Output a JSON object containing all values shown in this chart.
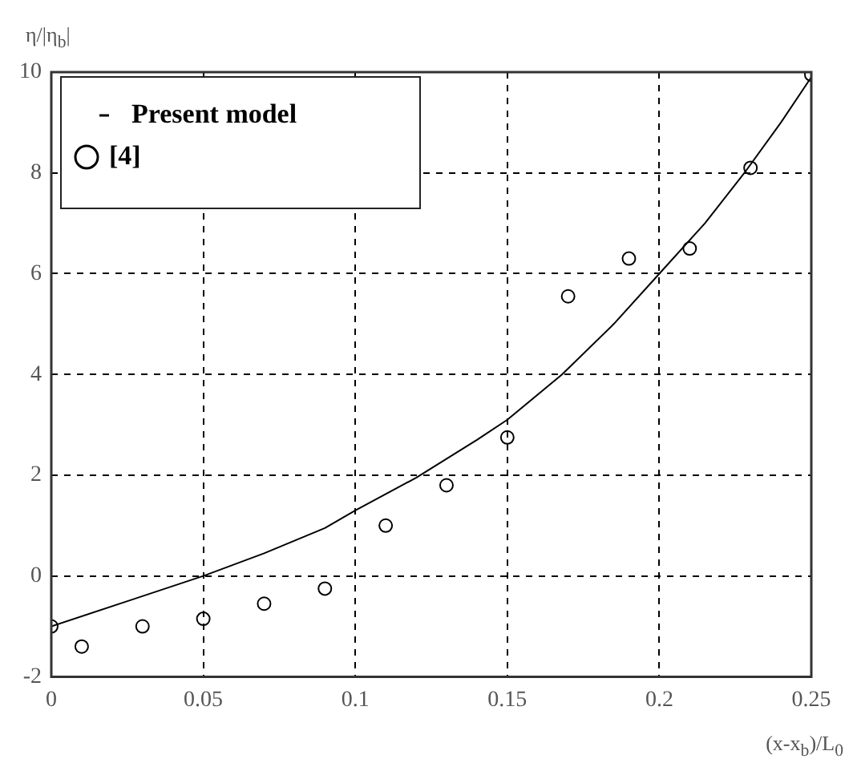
{
  "chart_data": {
    "type": "scatter",
    "xlabel": "(x-x$_{b}$)/L$_{0}$",
    "ylabel": "η/|η$_{b}$|",
    "xlim": [
      0,
      0.25
    ],
    "xticks": [
      0,
      0.05,
      0.1,
      0.15,
      0.2,
      0.25
    ],
    "ylim": [
      -2,
      10
    ],
    "yticks": [
      -2,
      0,
      2,
      4,
      6,
      8,
      10
    ],
    "grid": true,
    "legend": "top left",
    "series": [
      {
        "name": "Present model",
        "type": "line",
        "color": "#000000",
        "line_style": "solid",
        "marker": "none",
        "x": [
          0,
          0.025,
          0.05,
          0.07,
          0.09,
          0.1,
          0.12,
          0.14,
          0.15,
          0.168,
          0.185,
          0.2,
          0.215,
          0.228,
          0.24,
          0.25
        ],
        "values": [
          -1,
          -0.5,
          0,
          0.45,
          0.95,
          1.3,
          1.95,
          2.7,
          3.1,
          4,
          5,
          6,
          7,
          8,
          9,
          9.9
        ]
      },
      {
        "name": "[4]",
        "color": "#000000",
        "marker": "circle",
        "x": [
          0,
          0.01,
          0.03,
          0.05,
          0.07,
          0.09,
          0.11,
          0.13,
          0.15,
          0.17,
          0.19,
          0.21,
          0.23,
          0.25
        ],
        "values": [
          -1,
          -1.4,
          -1,
          -0.85,
          -0.55,
          -0.25,
          1,
          1.8,
          2.75,
          5.55,
          6.3,
          6.5,
          8.1,
          9.95
        ]
      }
    ]
  }
}
